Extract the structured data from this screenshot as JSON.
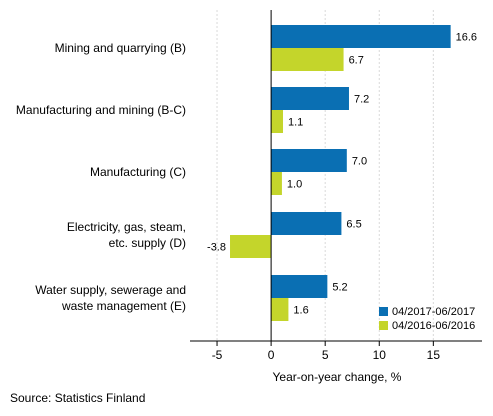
{
  "chart_data": {
    "type": "bar",
    "orientation": "horizontal",
    "categories": [
      [
        "Mining and quarrying (B)"
      ],
      [
        "Manufacturing and mining (B-C)"
      ],
      [
        "Manufacturing (C)"
      ],
      [
        "Electricity, gas, steam,",
        "etc. supply (D)"
      ],
      [
        "Water supply, sewerage and",
        "waste management (E)"
      ]
    ],
    "series": [
      {
        "name": "04/2017-06/2017",
        "color": "#0a6fb3",
        "values": [
          16.6,
          7.2,
          7.0,
          6.5,
          5.2
        ]
      },
      {
        "name": "04/2016-06/2016",
        "color": "#c4d52b",
        "values": [
          6.7,
          1.1,
          1.0,
          -3.8,
          1.6
        ]
      }
    ],
    "xlim": [
      -7.5,
      19.5
    ],
    "xticks": [
      -5,
      0,
      5,
      10,
      15
    ],
    "xlabel": "Year-on-year change, %",
    "grid": "vertical",
    "legend_position": "bottom-right"
  },
  "source": "Source: Statistics Finland"
}
